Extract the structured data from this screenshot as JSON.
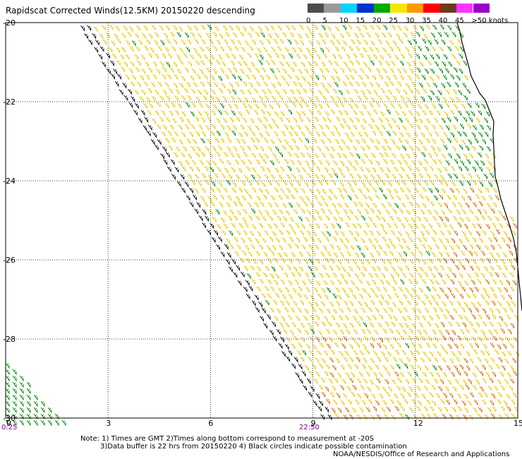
{
  "title": "Rapidscat Corrected Winds(12.5KM) 20150220 descending",
  "colorbar": {
    "labels": [
      "0",
      "5",
      "10",
      "15",
      "20",
      "25",
      "30",
      "35",
      "40",
      "45",
      ">50 knots"
    ],
    "colors": [
      "#4b4b4b",
      "#9a9a9a",
      "#00d4ff",
      "#0033cc",
      "#00a800",
      "#f6e600",
      "#ff9900",
      "#ff0000",
      "#6b3a1f",
      "#ff33ff",
      "#9900cc"
    ]
  },
  "axes": {
    "x_ticks": [
      "0",
      "3",
      "6",
      "9",
      "12",
      "15"
    ],
    "y_ticks": [
      "-20",
      "-22",
      "-24",
      "-26",
      "-28",
      "-30"
    ]
  },
  "time_labels": {
    "left": "0:25",
    "mid": "22:50"
  },
  "notes": {
    "line1": "Note: 1) Times are GMT 2)Times along bottom correspond to measurement at -20S",
    "line2": "3)Data buffer is 22 hrs from 20150220 4) Black circles indicate possible contamination"
  },
  "credit": "NOAA/NESDIS/Office of Research and Applications",
  "colors": {
    "coast": "#000000",
    "grid": "#000000",
    "barb_low": "#008800",
    "barb_mid": "#e8c800",
    "barb_high": "#dd6600",
    "barb_edge": "#000000"
  }
}
